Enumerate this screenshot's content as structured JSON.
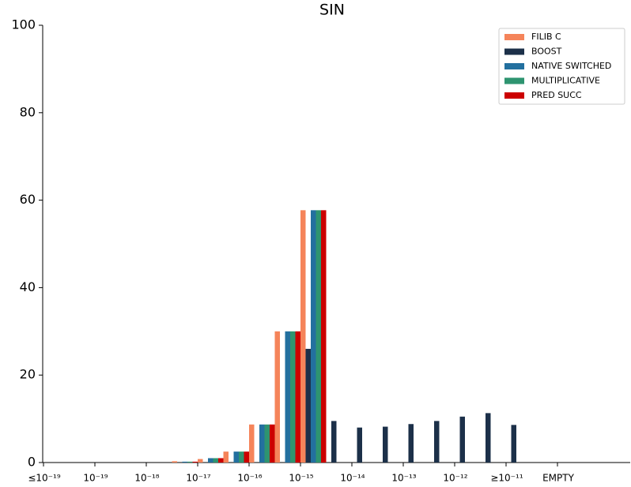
{
  "chart_data": {
    "type": "bar",
    "title": "SIN",
    "categories": [
      "≤10⁻¹⁹",
      null,
      "10⁻¹⁹",
      null,
      "10⁻¹⁸",
      null,
      "10⁻¹⁷",
      null,
      "10⁻¹⁶",
      null,
      "10⁻¹⁵",
      null,
      "10⁻¹⁴",
      null,
      "10⁻¹³",
      null,
      "10⁻¹²",
      null,
      "≥10⁻¹¹",
      null,
      "EMPTY"
    ],
    "series": [
      {
        "name": "FILIB C",
        "color": "#f5845a",
        "values": [
          0,
          0,
          0,
          0,
          0,
          0.3,
          0.8,
          2.5,
          8.7,
          30,
          57.7,
          0,
          0,
          0,
          0,
          0,
          0,
          0,
          0,
          0,
          0
        ]
      },
      {
        "name": "BOOST",
        "color": "#1c3049",
        "values": [
          0,
          0,
          0,
          0,
          0,
          0,
          0,
          0,
          0,
          0,
          26,
          9.5,
          8,
          8.2,
          8.8,
          9.5,
          10.5,
          11.3,
          8.6,
          0,
          0
        ]
      },
      {
        "name": "NATIVE SWITCHED",
        "color": "#23709f",
        "values": [
          0,
          0,
          0,
          0,
          0,
          0.2,
          1,
          2.5,
          8.7,
          30,
          57.7,
          0,
          0,
          0,
          0,
          0,
          0,
          0,
          0,
          0,
          0
        ]
      },
      {
        "name": "MULTIPLICATIVE",
        "color": "#2e9470",
        "values": [
          0,
          0,
          0,
          0,
          0,
          0.2,
          1,
          2.5,
          8.7,
          30,
          57.7,
          0,
          0,
          0,
          0,
          0,
          0,
          0,
          0,
          0,
          0
        ]
      },
      {
        "name": "PRED SUCC",
        "color": "#cc0000",
        "values": [
          0,
          0,
          0,
          0,
          0,
          0.2,
          1,
          2.5,
          8.7,
          30,
          57.7,
          0,
          0,
          0,
          0,
          0,
          0,
          0,
          0,
          0,
          0
        ]
      }
    ],
    "ylim": [
      0,
      100
    ],
    "yticks": [
      0,
      20,
      40,
      60,
      80,
      100
    ],
    "grid": false,
    "legend": "upper right"
  }
}
